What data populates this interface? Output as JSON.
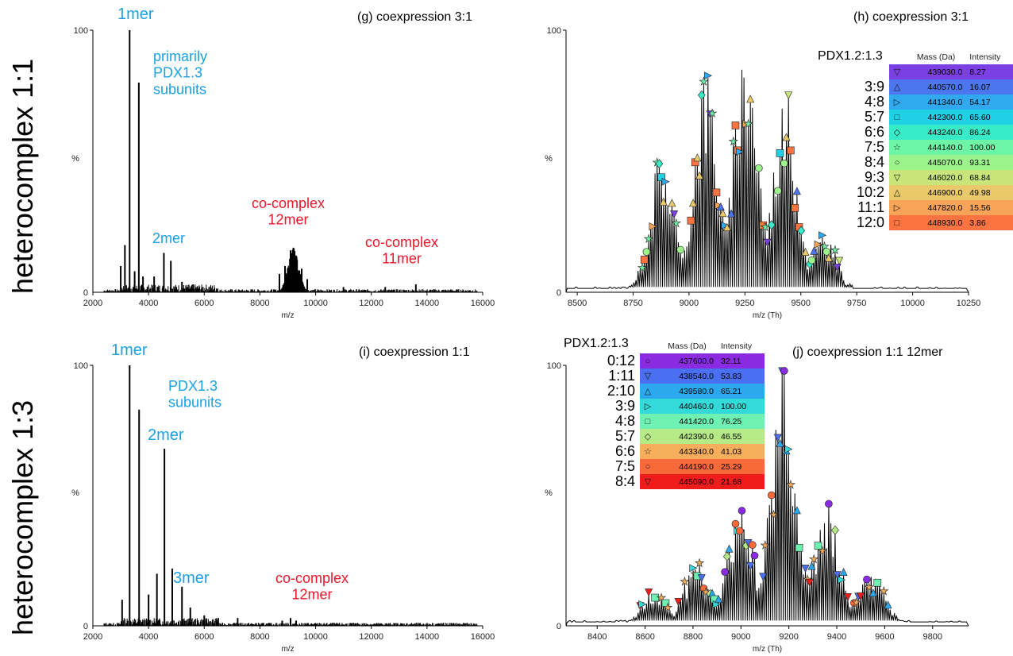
{
  "side_titles": [
    "heterocomplex 1:1",
    "heterocomplex 1:3"
  ],
  "colors": {
    "line": "#000000",
    "blue_annotation": "#1ba1e2",
    "red_annotation": "#e8182a"
  },
  "chart_data": [
    {
      "id": "g",
      "type": "line",
      "title": "(g) coexpression 3:1",
      "xlabel": "m/z",
      "ylabel": "%",
      "xlim": [
        2000,
        16000
      ],
      "ylim": [
        0,
        100
      ],
      "xticks": [
        "2000",
        "4000",
        "6000",
        "8000",
        "10000",
        "12000",
        "14000",
        "16000"
      ],
      "yticks": [
        "0",
        "100"
      ],
      "peaks": [
        [
          3000,
          10
        ],
        [
          3150,
          18
        ],
        [
          3320,
          100
        ],
        [
          3500,
          8
        ],
        [
          3650,
          80
        ],
        [
          3800,
          6
        ],
        [
          4200,
          6
        ],
        [
          4550,
          15
        ],
        [
          4800,
          12
        ],
        [
          5200,
          4
        ],
        [
          5600,
          3
        ],
        [
          8700,
          7
        ],
        [
          8900,
          10
        ],
        [
          9100,
          16
        ],
        [
          9200,
          17
        ],
        [
          9300,
          14
        ],
        [
          9500,
          9
        ],
        [
          9700,
          5
        ],
        [
          11000,
          2
        ],
        [
          12500,
          2
        ],
        [
          13600,
          3
        ]
      ],
      "annotations": [
        {
          "text": "1mer",
          "x": 3320,
          "color": "blue"
        },
        {
          "text": "primarily\nPDX1.3\nsubunits",
          "color": "blue"
        },
        {
          "text": "2mer",
          "color": "blue"
        },
        {
          "text": "co-complex\n12mer",
          "color": "red"
        },
        {
          "text": "co-complex\n11mer",
          "color": "red"
        }
      ]
    },
    {
      "id": "h",
      "type": "line",
      "title": "(h) coexpression 3:1",
      "xlabel": "m/z (Th)",
      "ylabel": "%",
      "xlim": [
        8450,
        10250
      ],
      "ylim": [
        0,
        100
      ],
      "xticks": [
        "8500",
        "8750",
        "9000",
        "9250",
        "9500",
        "9750",
        "10000",
        "10250"
      ],
      "yticks": [
        "0",
        "100"
      ],
      "envelope_centers": [
        8880,
        9075,
        9255,
        9430,
        9605
      ],
      "envelope_heights": [
        55,
        88,
        100,
        78,
        22
      ],
      "table": {
        "title": "PDX1.2:1.3",
        "headers": [
          "Mass (Da)",
          "Intensity"
        ],
        "rows": [
          {
            "ratio": "",
            "symbol": "▽",
            "mass": "439030.0",
            "intensity": "8.27",
            "color": "#7b3fe4"
          },
          {
            "ratio": "3:9",
            "symbol": "△",
            "mass": "440570.0",
            "intensity": "16.07",
            "color": "#4b76ef"
          },
          {
            "ratio": "4:8",
            "symbol": "▷",
            "mass": "441340.0",
            "intensity": "54.17",
            "color": "#31a9ee"
          },
          {
            "ratio": "5:7",
            "symbol": "□",
            "mass": "442300.0",
            "intensity": "65.60",
            "color": "#20d0e4"
          },
          {
            "ratio": "6:6",
            "symbol": "◇",
            "mass": "443240.0",
            "intensity": "86.24",
            "color": "#38ebc8"
          },
          {
            "ratio": "7:5",
            "symbol": "☆",
            "mass": "444140.0",
            "intensity": "100.00",
            "color": "#6ef5a5"
          },
          {
            "ratio": "8:4",
            "symbol": "○",
            "mass": "445070.0",
            "intensity": "93.31",
            "color": "#9df48c"
          },
          {
            "ratio": "9:3",
            "symbol": "▽",
            "mass": "446020.0",
            "intensity": "68.84",
            "color": "#c9e57a"
          },
          {
            "ratio": "10:2",
            "symbol": "△",
            "mass": "446900.0",
            "intensity": "49.98",
            "color": "#e9c96a"
          },
          {
            "ratio": "11:1",
            "symbol": "▷",
            "mass": "447820.0",
            "intensity": "15.56",
            "color": "#f8a458"
          },
          {
            "ratio": "12:0",
            "symbol": "□",
            "mass": "448930.0",
            "intensity": "3.86",
            "color": "#fb7340"
          }
        ]
      }
    },
    {
      "id": "i",
      "type": "line",
      "title": "(i) coexpression 1:1",
      "xlabel": "m/z",
      "ylabel": "%",
      "xlim": [
        2000,
        16000
      ],
      "ylim": [
        0,
        100
      ],
      "xticks": [
        "2000",
        "4000",
        "6000",
        "8000",
        "10000",
        "12000",
        "14000",
        "16000"
      ],
      "yticks": [
        "0",
        "100"
      ],
      "peaks": [
        [
          3050,
          10
        ],
        [
          3320,
          100
        ],
        [
          3660,
          83
        ],
        [
          4000,
          12
        ],
        [
          4300,
          20
        ],
        [
          4570,
          68
        ],
        [
          4850,
          22
        ],
        [
          5200,
          15
        ],
        [
          5500,
          7
        ],
        [
          6000,
          4
        ],
        [
          6500,
          3
        ],
        [
          7200,
          3
        ],
        [
          8800,
          2
        ],
        [
          9100,
          3
        ],
        [
          9300,
          2
        ]
      ],
      "annotations": [
        {
          "text": "1mer",
          "color": "blue"
        },
        {
          "text": "PDX1.3\nsubunits",
          "color": "blue"
        },
        {
          "text": "2mer",
          "color": "blue"
        },
        {
          "text": "3mer",
          "color": "blue"
        },
        {
          "text": "co-complex\n12mer",
          "color": "red"
        }
      ]
    },
    {
      "id": "j",
      "type": "line",
      "title": "(j) coexpression 1:1 12mer",
      "xlabel": "m/z (Th)",
      "ylabel": "%",
      "xlim": [
        8270,
        9950
      ],
      "ylim": [
        0,
        100
      ],
      "xticks": [
        "8400",
        "8600",
        "8800",
        "9000",
        "9200",
        "9400",
        "9600",
        "9800"
      ],
      "yticks": [
        "0",
        "100"
      ],
      "envelope_centers": [
        8640,
        8820,
        9000,
        9180,
        9360,
        9540
      ],
      "envelope_heights": [
        12,
        25,
        45,
        100,
        45,
        20
      ],
      "table": {
        "title": "PDX1.2:1.3",
        "headers": [
          "Mass (Da)",
          "Intensity"
        ],
        "rows": [
          {
            "ratio": "0:12",
            "symbol": "○",
            "mass": "437600.0",
            "intensity": "32.11",
            "color": "#8a2be2"
          },
          {
            "ratio": "1:11",
            "symbol": "▽",
            "mass": "438540.0",
            "intensity": "53.83",
            "color": "#4a6ff0"
          },
          {
            "ratio": "2:10",
            "symbol": "△",
            "mass": "439580.0",
            "intensity": "65.21",
            "color": "#2ca8ee"
          },
          {
            "ratio": "3:9",
            "symbol": "▷",
            "mass": "440460.0",
            "intensity": "100.00",
            "color": "#34d9da"
          },
          {
            "ratio": "4:8",
            "symbol": "□",
            "mass": "441420.0",
            "intensity": "76.25",
            "color": "#6ef1b3"
          },
          {
            "ratio": "5:7",
            "symbol": "◇",
            "mass": "442390.0",
            "intensity": "46.55",
            "color": "#b5ea86"
          },
          {
            "ratio": "6:6",
            "symbol": "☆",
            "mass": "443340.0",
            "intensity": "41.03",
            "color": "#f6ad5c"
          },
          {
            "ratio": "7:5",
            "symbol": "○",
            "mass": "444190.0",
            "intensity": "25.29",
            "color": "#f96a3a"
          },
          {
            "ratio": "8:4",
            "symbol": "▽",
            "mass": "445090.0",
            "intensity": "21.68",
            "color": "#f01c1c"
          }
        ]
      }
    }
  ]
}
